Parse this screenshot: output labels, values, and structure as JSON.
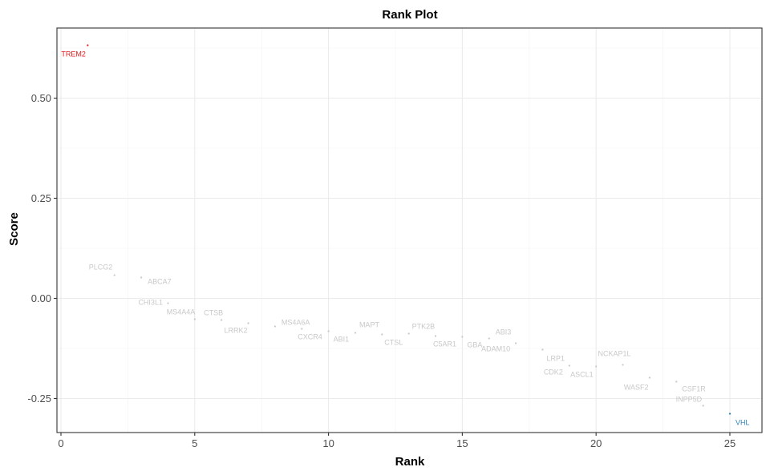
{
  "chart_data": {
    "type": "scatter",
    "title": "Rank Plot",
    "xlabel": "Rank",
    "ylabel": "Score",
    "xlim": [
      -0.15,
      26.2
    ],
    "ylim": [
      -0.335,
      0.675
    ],
    "x_ticks": [
      0,
      5,
      10,
      15,
      20,
      25
    ],
    "x_tick_labels": [
      "0",
      "5",
      "10",
      "15",
      "20",
      "25"
    ],
    "y_ticks": [
      -0.25,
      0.0,
      0.25,
      0.5
    ],
    "y_tick_labels": [
      "-0.25",
      "0.00",
      "0.25",
      "0.50"
    ],
    "grid": true,
    "colors": {
      "top": "#e41a1c",
      "bottom": "#2b83ba",
      "middle": "#c8c8c8"
    },
    "points": [
      {
        "rank": 1,
        "score": 0.632,
        "label": "TREM2",
        "group": "top"
      },
      {
        "rank": 2,
        "score": 0.058,
        "label": "PLCG2",
        "group": "middle"
      },
      {
        "rank": 3,
        "score": 0.052,
        "label": "ABCA7",
        "group": "middle"
      },
      {
        "rank": 4,
        "score": -0.012,
        "label": "CHI3L1",
        "group": "middle"
      },
      {
        "rank": 5,
        "score": -0.052,
        "label": "MS4A4A",
        "group": "middle"
      },
      {
        "rank": 6,
        "score": -0.054,
        "label": "CTSB",
        "group": "middle"
      },
      {
        "rank": 7,
        "score": -0.062,
        "label": "LRRK2",
        "group": "middle"
      },
      {
        "rank": 8,
        "score": -0.07,
        "label": "MS4A6A",
        "group": "middle"
      },
      {
        "rank": 9,
        "score": -0.076,
        "label": "CXCR4",
        "group": "middle"
      },
      {
        "rank": 10,
        "score": -0.082,
        "label": "ABI1",
        "group": "middle"
      },
      {
        "rank": 11,
        "score": -0.086,
        "label": "MAPT",
        "group": "middle"
      },
      {
        "rank": 12,
        "score": -0.09,
        "label": "CTSL",
        "group": "middle"
      },
      {
        "rank": 13,
        "score": -0.088,
        "label": "PTK2B",
        "group": "middle"
      },
      {
        "rank": 14,
        "score": -0.094,
        "label": "C5AR1",
        "group": "middle"
      },
      {
        "rank": 15,
        "score": -0.096,
        "label": "GBA",
        "group": "middle"
      },
      {
        "rank": 16,
        "score": -0.1,
        "label": "ABI3",
        "group": "middle"
      },
      {
        "rank": 17,
        "score": -0.112,
        "label": "ADAM10",
        "group": "middle"
      },
      {
        "rank": 18,
        "score": -0.128,
        "label": "LRP1",
        "group": "middle"
      },
      {
        "rank": 19,
        "score": -0.168,
        "label": "CDK2",
        "group": "middle"
      },
      {
        "rank": 20,
        "score": -0.17,
        "label": "ASCL1",
        "group": "middle"
      },
      {
        "rank": 21,
        "score": -0.166,
        "label": "NCKAP1L",
        "group": "middle"
      },
      {
        "rank": 22,
        "score": -0.198,
        "label": "WASF2",
        "group": "middle"
      },
      {
        "rank": 23,
        "score": -0.208,
        "label": "CSF1R",
        "group": "middle"
      },
      {
        "rank": 24,
        "score": -0.268,
        "label": "INPP5D",
        "group": "middle"
      },
      {
        "rank": 25,
        "score": -0.288,
        "label": "VHL",
        "group": "bottom"
      }
    ]
  }
}
